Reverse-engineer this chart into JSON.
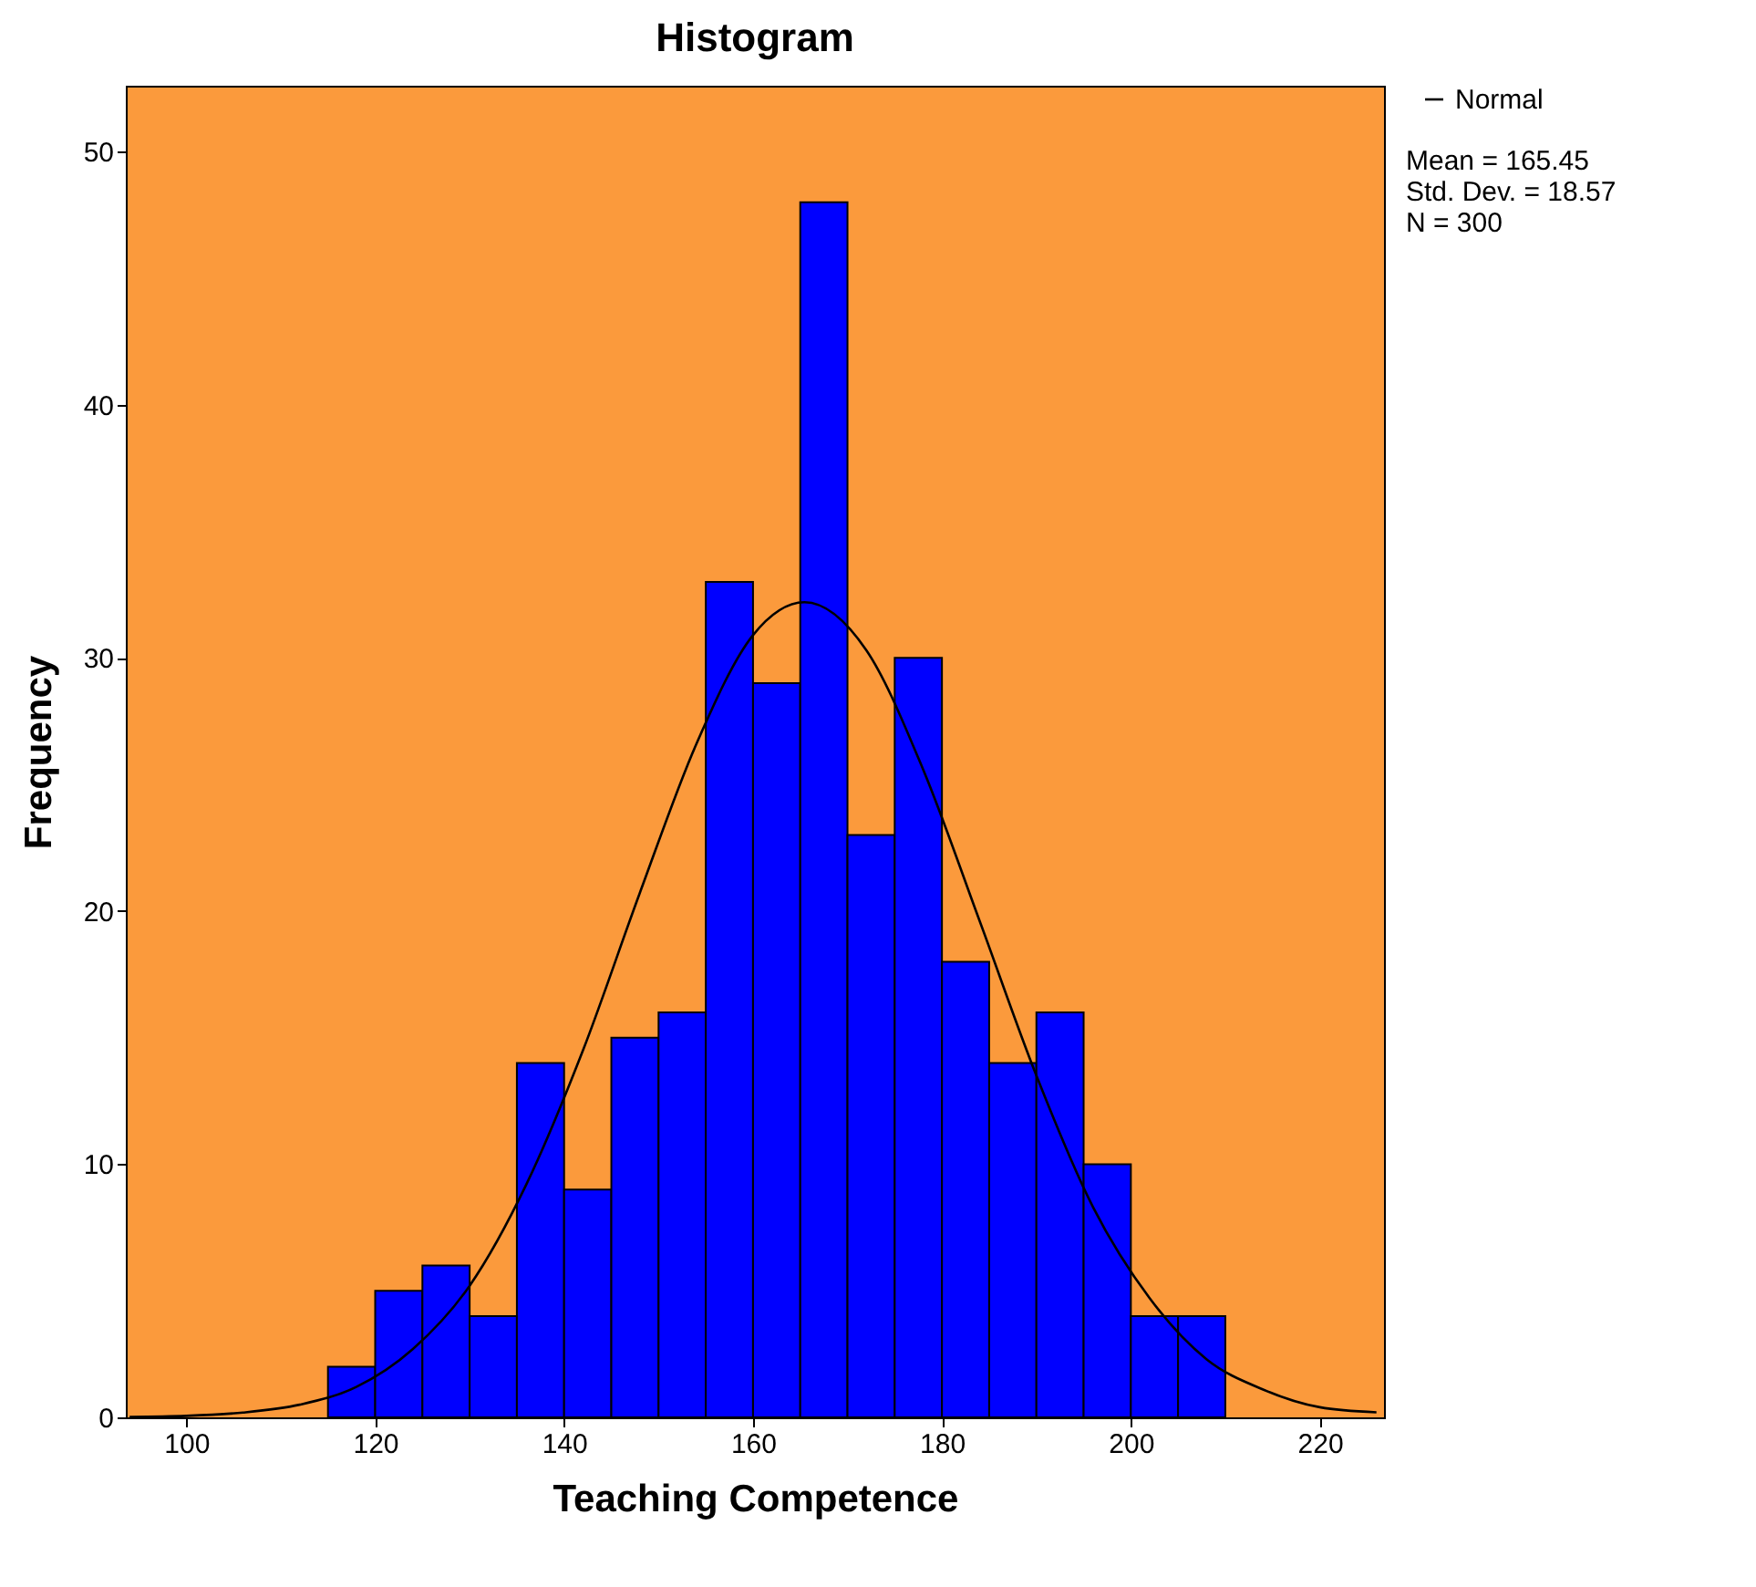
{
  "chart_data": {
    "type": "histogram",
    "title": "Histogram",
    "xlabel": "Teaching Competence",
    "ylabel": "Frequency",
    "bins": [
      115,
      120,
      125,
      130,
      135,
      140,
      145,
      150,
      155,
      160,
      165,
      170,
      175,
      180,
      185,
      190,
      195,
      200,
      205,
      210
    ],
    "values": [
      2,
      5,
      6,
      4,
      14,
      9,
      15,
      16,
      33,
      29,
      48,
      23,
      30,
      18,
      14,
      16,
      10,
      4,
      4
    ],
    "color": "#0000ff",
    "series": [
      {
        "type": "line",
        "name": "Normal",
        "color": "#000000",
        "x": [
          94,
          100,
          106,
          112,
          118,
          124,
          130,
          136,
          142,
          148,
          154,
          160,
          165.45,
          172,
          178,
          184,
          190,
          196,
          202,
          208,
          214,
          220,
          226
        ],
        "values": [
          0.02,
          0.06,
          0.19,
          0.5,
          1.2,
          2.7,
          5.2,
          9.2,
          14.5,
          20.7,
          26.6,
          30.9,
          32.2,
          30.3,
          25.6,
          19.6,
          13.5,
          8.3,
          4.7,
          2.3,
          1.1,
          0.4,
          0.2
        ]
      }
    ],
    "annotations": [
      "Mean = 165.45",
      "Std. Dev. = 18.57",
      "N = 300"
    ],
    "xlim": [
      93.6,
      226.8
    ],
    "xticks": [
      100,
      120,
      140,
      160,
      180,
      200,
      220
    ],
    "ylim": [
      0,
      52.6
    ],
    "yticks": [
      0,
      10,
      20,
      30,
      40,
      50
    ],
    "legend": "top right",
    "grid": false
  }
}
